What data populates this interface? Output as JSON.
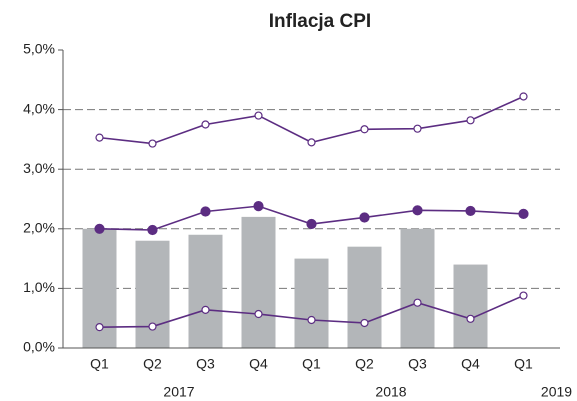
{
  "chart_data": {
    "type": "combo",
    "title": "Inflacja CPI",
    "categories": [
      "Q1",
      "Q2",
      "Q3",
      "Q4",
      "Q1",
      "Q2",
      "Q3",
      "Q4",
      "Q1"
    ],
    "x_groups": [
      "2017",
      "2018",
      "2019"
    ],
    "ylim": [
      0,
      5
    ],
    "yticks": [
      {
        "value": 0,
        "label": "0,0%"
      },
      {
        "value": 1,
        "label": "1,0%"
      },
      {
        "value": 2,
        "label": "2,0%"
      },
      {
        "value": 3,
        "label": "3,0%"
      },
      {
        "value": 4,
        "label": "4,0%"
      },
      {
        "value": 5,
        "label": "5,0%"
      }
    ],
    "grid": true,
    "series": [
      {
        "kind": "bar",
        "color": "#b3b6b9",
        "values": [
          2.0,
          1.8,
          1.9,
          2.2,
          1.5,
          1.7,
          2.0,
          1.4,
          null
        ]
      },
      {
        "kind": "line",
        "marker": "open",
        "color": "#5c2d82",
        "values": [
          3.53,
          3.43,
          3.75,
          3.9,
          3.45,
          3.67,
          3.68,
          3.82,
          4.22
        ]
      },
      {
        "kind": "line",
        "marker": "filled",
        "color": "#5c2d82",
        "values": [
          2.0,
          1.98,
          2.29,
          2.38,
          2.08,
          2.19,
          2.31,
          2.3,
          2.25
        ]
      },
      {
        "kind": "line",
        "marker": "open",
        "color": "#5c2d82",
        "values": [
          0.35,
          0.36,
          0.64,
          0.57,
          0.47,
          0.42,
          0.76,
          0.49,
          0.88
        ]
      }
    ]
  }
}
